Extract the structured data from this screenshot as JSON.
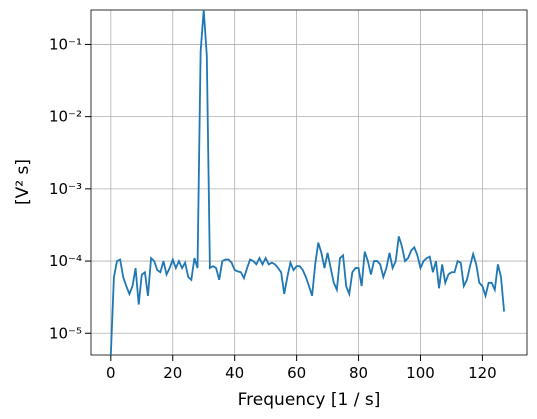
{
  "chart_data": {
    "type": "line",
    "x_label": "Frequency [1 / s]",
    "y_label": "[V² s]",
    "x": [
      0,
      1,
      2,
      3,
      4,
      5,
      6,
      7,
      8,
      9,
      10,
      11,
      12,
      13,
      14,
      15,
      16,
      17,
      18,
      19,
      20,
      21,
      22,
      23,
      24,
      25,
      26,
      27,
      28,
      29,
      30,
      31,
      32,
      33,
      34,
      35,
      36,
      37,
      38,
      39,
      40,
      41,
      42,
      43,
      44,
      45,
      46,
      47,
      48,
      49,
      50,
      51,
      52,
      53,
      54,
      55,
      56,
      57,
      58,
      59,
      60,
      61,
      62,
      63,
      64,
      65,
      66,
      67,
      68,
      69,
      70,
      71,
      72,
      73,
      74,
      75,
      76,
      77,
      78,
      79,
      80,
      81,
      82,
      83,
      84,
      85,
      86,
      87,
      88,
      89,
      90,
      91,
      92,
      93,
      94,
      95,
      96,
      97,
      98,
      99,
      100,
      101,
      102,
      103,
      104,
      105,
      106,
      107,
      108,
      109,
      110,
      111,
      112,
      113,
      114,
      115,
      116,
      117,
      118,
      119,
      120,
      121,
      122,
      123,
      124,
      125,
      126,
      127
    ],
    "series": [
      {
        "color": "#1f77b4",
        "values": [
          5e-06,
          6e-05,
          0.0001,
          0.000105,
          6e-05,
          4.5e-05,
          3.5e-05,
          4.5e-05,
          8e-05,
          2.5e-05,
          6.5e-05,
          7e-05,
          3.3e-05,
          0.00011,
          0.0001,
          7.5e-05,
          7e-05,
          0.0001,
          6.5e-05,
          8e-05,
          0.000105,
          8e-05,
          0.0001,
          8e-05,
          9.5e-05,
          6e-05,
          5.5e-05,
          0.00011,
          8e-05,
          0.08,
          0.3,
          0.07,
          8e-05,
          8.5e-05,
          8e-05,
          5.5e-05,
          0.0001,
          0.000105,
          0.000105,
          9.5e-05,
          7.5e-05,
          7.2e-05,
          7e-05,
          5.8e-05,
          8e-05,
          0.000105,
          0.0001,
          9e-05,
          0.00011,
          9e-05,
          0.00011,
          9e-05,
          9.5e-05,
          9e-05,
          8e-05,
          7e-05,
          3.5e-05,
          6e-05,
          9.5e-05,
          7.5e-05,
          8.5e-05,
          8.5e-05,
          7.5e-05,
          6e-05,
          4.5e-05,
          3.3e-05,
          9e-05,
          0.00018,
          0.00013,
          8e-05,
          0.00013,
          8e-05,
          5e-05,
          4e-05,
          0.00011,
          0.00012,
          4.5e-05,
          3.5e-05,
          7e-05,
          8e-05,
          8e-05,
          4.5e-05,
          0.000135,
          0.0001,
          6.5e-05,
          0.0001,
          0.0001,
          9e-05,
          6e-05,
          8e-05,
          0.00013,
          8e-05,
          0.0001,
          0.00022,
          0.00016,
          0.0001,
          0.00011,
          0.00014,
          0.000155,
          0.00012,
          8e-05,
          0.0001,
          0.00011,
          0.000115,
          7e-05,
          0.0001,
          4.2e-05,
          9e-05,
          5e-05,
          6.5e-05,
          7e-05,
          7e-05,
          0.0001,
          9.5e-05,
          4.5e-05,
          5.5e-05,
          8.5e-05,
          0.000125,
          9e-05,
          5e-05,
          4.5e-05,
          3.3e-05,
          5e-05,
          5e-05,
          4e-05,
          9e-05,
          6e-05,
          2e-05
        ]
      }
    ],
    "xlim": [
      -6.4,
      134.4
    ],
    "xticks": [
      0,
      20,
      40,
      60,
      80,
      100,
      120
    ],
    "ylim": [
      5e-06,
      0.3
    ],
    "y_log": true,
    "yticks": [
      {
        "value": 1e-05,
        "label": "10⁻⁵"
      },
      {
        "value": 0.0001,
        "label": "10⁻⁴"
      },
      {
        "value": 0.001,
        "label": "10⁻³"
      },
      {
        "value": 0.01,
        "label": "10⁻²"
      },
      {
        "value": 0.1,
        "label": "10⁻¹"
      }
    ],
    "grid": true
  }
}
